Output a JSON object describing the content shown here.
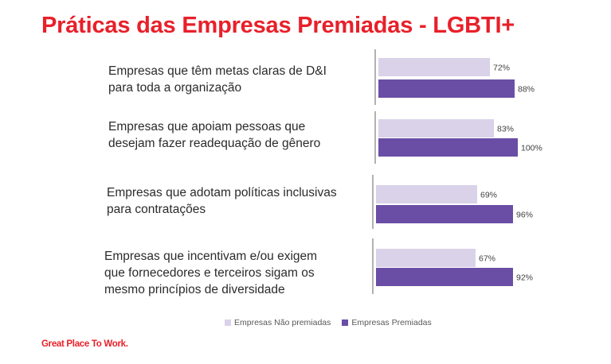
{
  "title": "Práticas das Empresas Premiadas - LGBTI+",
  "brand": "Great Place To Work.",
  "colors": {
    "title": "#e8202a",
    "non_awarded": "#d9d2e9",
    "awarded": "#6a4ea6",
    "axis": "#7f7f7f"
  },
  "chart_data": {
    "type": "bar",
    "orientation": "horizontal",
    "xlim": [
      0,
      100
    ],
    "categories": [
      "Empresas que têm metas claras de D&I para toda a organização",
      "Empresas que apoiam pessoas que desejam fazer readequação de gênero",
      "Empresas que adotam políticas inclusivas para contratações",
      "Empresas que incentivam e/ou exigem que fornecedores e terceiros sigam os mesmo princípios de diversidade"
    ],
    "category_lines": [
      [
        "Empresas que têm metas claras de D&I",
        "para toda a organização"
      ],
      [
        "Empresas que apoiam pessoas que",
        "desejam fazer readequação de gênero"
      ],
      [
        "Empresas que adotam políticas inclusivas",
        "para contratações"
      ],
      [
        "Empresas que incentivam e/ou exigem",
        "que fornecedores e terceiros sigam os",
        "mesmo princípios de diversidade"
      ]
    ],
    "series": [
      {
        "name": "Empresas Não premiadas",
        "values": [
          72,
          83,
          69,
          67
        ],
        "labels": [
          "72%",
          "83%",
          "69%",
          "67%"
        ]
      },
      {
        "name": "Empresas Premiadas",
        "values": [
          88,
          100,
          96,
          92
        ],
        "labels": [
          "88%",
          "100%",
          "96%",
          "92%"
        ]
      }
    ],
    "legend": "bottom",
    "grid": false
  }
}
